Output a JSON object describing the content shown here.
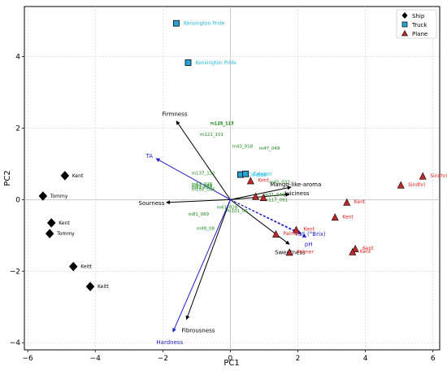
{
  "chart_data": {
    "type": "scatter",
    "xlabel": "PC1",
    "ylabel": "PC2",
    "xlim": [
      -6.1,
      6.2
    ],
    "ylim": [
      -4.2,
      5.4
    ],
    "xticks": [
      -6,
      -4,
      -2,
      0,
      2,
      4,
      6
    ],
    "yticks": [
      -4,
      -2,
      0,
      2,
      4
    ],
    "grid": true,
    "legend_position": "top-right",
    "colors": {
      "ship": "#000000",
      "truck": "#29a3d6",
      "plane": "#c0282a",
      "sensory_vector": "#000000",
      "chemical_vector": "#1e1ec8",
      "volatile_label": "#1a8a1a",
      "truck_label": "#22b8e0",
      "plane_label": "#e02020"
    },
    "series": [
      {
        "name": "Ship",
        "marker": "diamond",
        "points": [
          {
            "x": -4.9,
            "y": 0.67,
            "label": "Kent"
          },
          {
            "x": -5.55,
            "y": 0.1,
            "label": "Tommy"
          },
          {
            "x": -5.3,
            "y": -0.65,
            "label": "Kent"
          },
          {
            "x": -5.35,
            "y": -0.95,
            "label": "Tommy"
          },
          {
            "x": -4.65,
            "y": -1.87,
            "label": "Keitt"
          },
          {
            "x": -4.15,
            "y": -2.43,
            "label": "Keitt"
          }
        ]
      },
      {
        "name": "Truck",
        "marker": "square",
        "points": [
          {
            "x": -1.6,
            "y": 4.93,
            "label": "Kensington Pride"
          },
          {
            "x": -1.25,
            "y": 3.83,
            "label": "Kensington Pride"
          },
          {
            "x": 0.3,
            "y": 0.7,
            "label": "Calypso"
          },
          {
            "x": 0.45,
            "y": 0.72,
            "label": "Calypso"
          }
        ]
      },
      {
        "name": "Plane",
        "marker": "triangle",
        "points": [
          {
            "x": 5.7,
            "y": 0.65,
            "label": "Sindhri"
          },
          {
            "x": 5.05,
            "y": 0.4,
            "label": "Sindhri"
          },
          {
            "x": 3.45,
            "y": -0.08,
            "label": "Kent"
          },
          {
            "x": 3.1,
            "y": -0.5,
            "label": "Kent"
          },
          {
            "x": 3.7,
            "y": -1.38,
            "label": "Kent"
          },
          {
            "x": 3.62,
            "y": -1.47,
            "label": "Kent"
          },
          {
            "x": 0.6,
            "y": 0.52,
            "label": "Kent"
          },
          {
            "x": 1.95,
            "y": -0.85,
            "label": "Kent"
          },
          {
            "x": 1.35,
            "y": -0.97,
            "label": "Palmer"
          },
          {
            "x": 1.75,
            "y": -1.48,
            "label": "Palmer"
          },
          {
            "x": 0.75,
            "y": 0.08,
            "label": ""
          },
          {
            "x": 0.98,
            "y": 0.05,
            "label": ""
          }
        ]
      }
    ],
    "vectors": [
      {
        "group": "sensory",
        "label": "Firmness",
        "x": -1.6,
        "y": 2.2
      },
      {
        "group": "sensory",
        "label": "Mango-like-aroma",
        "x": 1.8,
        "y": 0.35
      },
      {
        "group": "sensory",
        "label": "Juiciness",
        "x": 1.75,
        "y": 0.15
      },
      {
        "group": "sensory",
        "label": "Sourness",
        "x": -1.9,
        "y": -0.08
      },
      {
        "group": "sensory",
        "label": "Sweetness",
        "x": 1.75,
        "y": -1.25
      },
      {
        "group": "sensory",
        "label": "Fibrousness",
        "x": -1.3,
        "y": -3.35
      },
      {
        "group": "chemical",
        "label": "TA",
        "x": -2.2,
        "y": 1.15
      },
      {
        "group": "chemical",
        "label": "TSS (°Brix)",
        "x": 2.1,
        "y": -0.95
      },
      {
        "group": "chemical",
        "label": "pH",
        "x": 2.25,
        "y": -1.05
      },
      {
        "group": "chemical",
        "label": "Hardness",
        "x": -1.7,
        "y": -3.7
      }
    ],
    "volatiles": [
      {
        "label": "m125_117",
        "x": -0.6,
        "y": 2.08
      },
      {
        "label": "m125_113",
        "x": -0.6,
        "y": 2.1
      },
      {
        "label": "m121_101",
        "x": -0.9,
        "y": 1.78
      },
      {
        "label": "m43_018",
        "x": 0.05,
        "y": 1.45
      },
      {
        "label": "m47_049",
        "x": 0.85,
        "y": 1.4
      },
      {
        "label": "m137_132",
        "x": -1.15,
        "y": 0.7
      },
      {
        "label": "m63_026",
        "x": -1.15,
        "y": 0.4
      },
      {
        "label": "m93_070",
        "x": -1.15,
        "y": 0.35
      },
      {
        "label": "m81_070",
        "x": -1.15,
        "y": 0.3
      },
      {
        "label": "m107_086",
        "x": -1.15,
        "y": 0.25
      },
      {
        "label": "m45_033",
        "x": 1.15,
        "y": 0.45
      },
      {
        "label": "m71_049",
        "x": 1.0,
        "y": 0.1
      },
      {
        "label": "m117_091",
        "x": 1.0,
        "y": -0.05
      },
      {
        "label": "m61_028",
        "x": -0.4,
        "y": -0.25
      },
      {
        "label": "m101_06",
        "x": -0.1,
        "y": -0.35
      },
      {
        "label": "m81_069",
        "x": -1.25,
        "y": -0.45
      },
      {
        "label": "m99_08",
        "x": -1.0,
        "y": -0.85
      }
    ]
  }
}
